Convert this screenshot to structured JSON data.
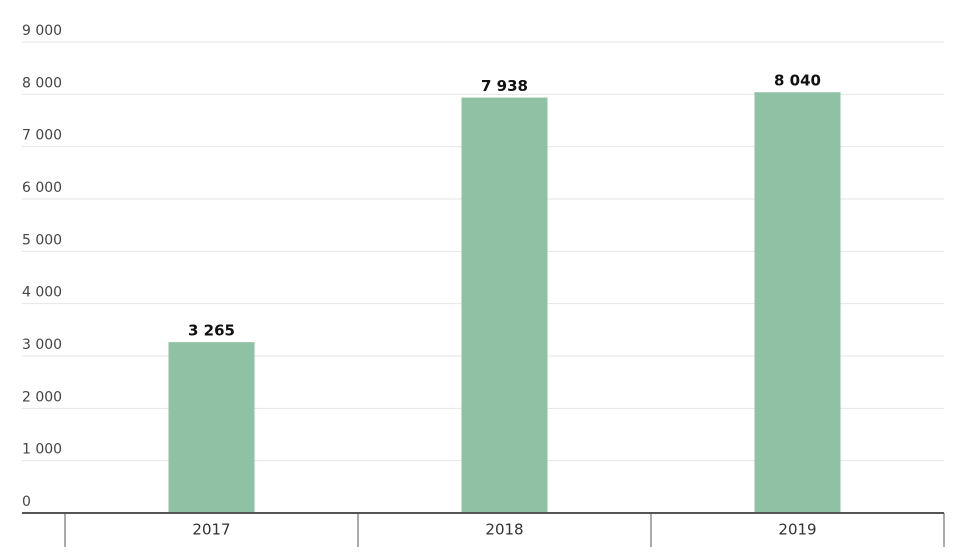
{
  "chart_data": {
    "type": "bar",
    "categories": [
      "2017",
      "2018",
      "2019"
    ],
    "values": [
      3265,
      7938,
      8040
    ],
    "value_labels": [
      "3 265",
      "7 938",
      "8 040"
    ],
    "color": "#8fc1a5",
    "ylim": [
      0,
      9000
    ],
    "yticks": [
      0,
      {
        "value": 1000,
        "label": "1 000"
      },
      {
        "value": 2000,
        "label": "2 000"
      },
      {
        "value": 3000,
        "label": "3 000"
      },
      {
        "value": 4000,
        "label": "4 000"
      },
      {
        "value": 5000,
        "label": "5 000"
      },
      {
        "value": 6000,
        "label": "6 000"
      },
      {
        "value": 7000,
        "label": "7 000"
      },
      {
        "value": 8000,
        "label": "8 000"
      },
      {
        "value": 9000,
        "label": "9 000"
      }
    ],
    "grid": true
  }
}
